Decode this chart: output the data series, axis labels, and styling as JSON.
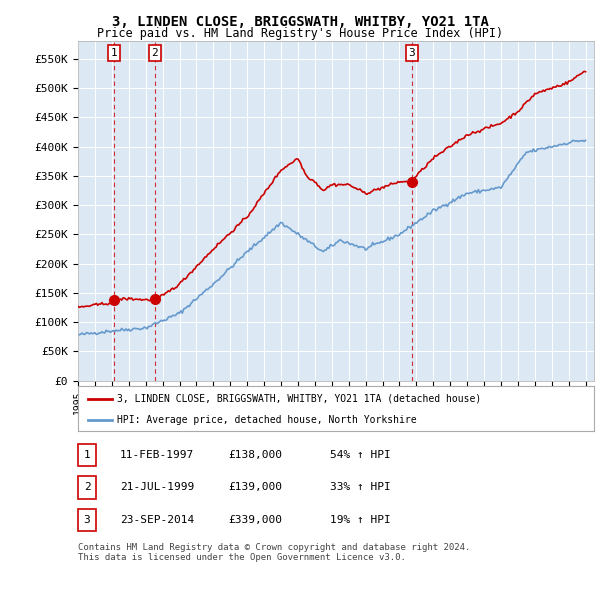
{
  "title": "3, LINDEN CLOSE, BRIGGSWATH, WHITBY, YO21 1TA",
  "subtitle": "Price paid vs. HM Land Registry's House Price Index (HPI)",
  "ylabel": "",
  "ylim": [
    0,
    580000
  ],
  "yticks": [
    0,
    50000,
    100000,
    150000,
    200000,
    250000,
    300000,
    350000,
    400000,
    450000,
    500000,
    550000
  ],
  "ytick_labels": [
    "£0",
    "£50K",
    "£100K",
    "£150K",
    "£200K",
    "£250K",
    "£300K",
    "£350K",
    "£400K",
    "£450K",
    "£500K",
    "£550K"
  ],
  "background_color": "#dce9f5",
  "plot_bg_color": "#dce9f5",
  "line_color_red": "#cc0000",
  "line_color_blue": "#6699cc",
  "sale_dates": [
    1997.11,
    1999.55,
    2014.73
  ],
  "sale_prices": [
    138000,
    139000,
    339000
  ],
  "sale_labels": [
    "1",
    "2",
    "3"
  ],
  "legend_red": "3, LINDEN CLOSE, BRIGGSWATH, WHITBY, YO21 1TA (detached house)",
  "legend_blue": "HPI: Average price, detached house, North Yorkshire",
  "table_data": [
    [
      "1",
      "11-FEB-1997",
      "£138,000",
      "54% ↑ HPI"
    ],
    [
      "2",
      "21-JUL-1999",
      "£139,000",
      "33% ↑ HPI"
    ],
    [
      "3",
      "23-SEP-2014",
      "£339,000",
      "19% ↑ HPI"
    ]
  ],
  "footer": "Contains HM Land Registry data © Crown copyright and database right 2024.\nThis data is licensed under the Open Government Licence v3.0.",
  "xmin": 1995.0,
  "xmax": 2025.5
}
